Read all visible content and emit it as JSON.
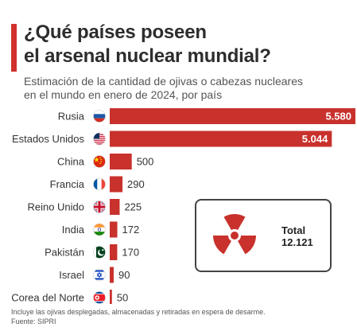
{
  "header": {
    "title_line1": "¿Qué países poseen",
    "title_line2": "el arsenal nuclear mundial?",
    "subtitle_line1": "Estimación de la cantidad de ojivas o cabezas nucleares",
    "subtitle_line2": "en el mundo en enero de 2024, por país"
  },
  "chart_data": {
    "type": "bar",
    "orientation": "horizontal",
    "categories": [
      "Rusia",
      "Estados Unidos",
      "China",
      "Francia",
      "Reino Unido",
      "India",
      "Pakistán",
      "Israel",
      "Corea del Norte"
    ],
    "values": [
      5580,
      5044,
      500,
      290,
      225,
      172,
      170,
      90,
      50
    ],
    "value_labels": [
      "5.580",
      "5.044",
      "500",
      "290",
      "225",
      "172",
      "170",
      "90",
      "50"
    ],
    "flag_icons": [
      "russia-flag-icon",
      "usa-flag-icon",
      "china-flag-icon",
      "france-flag-icon",
      "uk-flag-icon",
      "india-flag-icon",
      "pakistan-flag-icon",
      "israel-flag-icon",
      "north-korea-flag-icon"
    ],
    "bar_color": "#c8312c",
    "xlim": [
      0,
      5580
    ],
    "grid": false
  },
  "total": {
    "label": "Total",
    "value": "12.121",
    "icon": "radiation-icon",
    "icon_color": "#c8312c"
  },
  "footnote": {
    "line1": "Incluye las ojivas desplegadas, almacenadas y retiradas en espera de desarme.",
    "line2": "Fuente: SIPRI"
  },
  "colors": {
    "accent": "#d0312d",
    "text": "#333333"
  }
}
